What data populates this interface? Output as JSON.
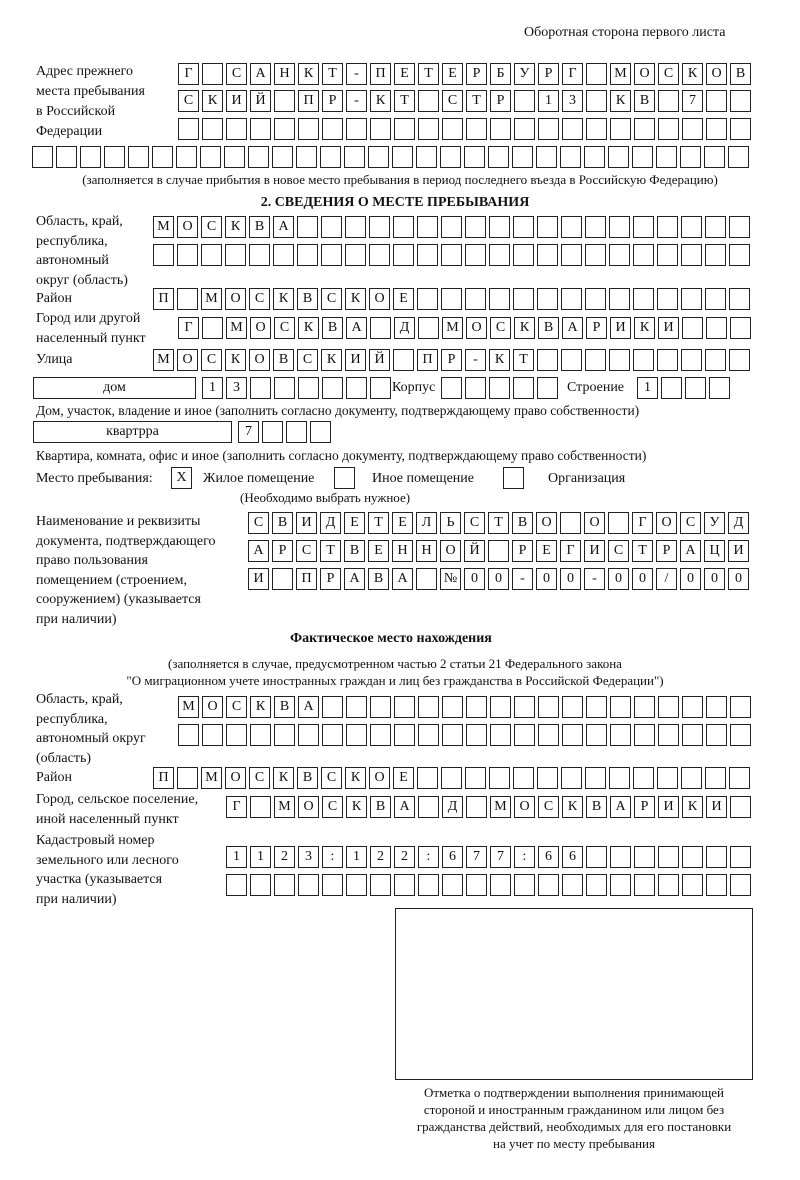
{
  "header": "Оборотная сторона первого листа",
  "prev_address": {
    "label": "Адрес прежнего\nместа пребывания\nв Российской\nФедерации",
    "rows": [
      "Г САНКТ-ПЕТЕРБУРГ МОСКОВ",
      "СКИЙ ПР-КТ СТР 13 КВ 7  ",
      "                        ",
      "                              "
    ],
    "note": "(заполняется в случае прибытия в новое место пребывания в период последнего въезда в Российскую Федерацию)"
  },
  "section2": {
    "title": "2. СВЕДЕНИЯ О МЕСТЕ ПРЕБЫВАНИЯ",
    "region_label": "Область, край,\nреспублика,\nавтономный\nокруг (область)",
    "region_rows": [
      "МОСКВА                   ",
      "                         "
    ],
    "district_label": "Район",
    "district_row": "П МОСКВСКОЕ              ",
    "city_label": "Город или другой\nнаселенный пункт",
    "city_row": "Г МОСКВА Д МОСКВАРИКИ   ",
    "street_label": "Улица",
    "street_row": "МОСКОВСКИЙ ПР-КТ         ",
    "house_type": "дом",
    "house_row": "13      ",
    "korpus_label": "Корпус",
    "korpus_row": "     ",
    "building_label": "Строение",
    "building_row": "1   ",
    "house_caption": "Дом, участок, владение и иное (заполнить согласно документу, подтверждающему право собственности)",
    "flat_type": "квартрра",
    "flat_row": "7   ",
    "flat_caption": "Квартира, комната, офис и иное (заполнить согласно документу, подтверждающему право собственности)",
    "stay_label": "Место пребывания:",
    "stay_options": [
      {
        "label": "Жилое помещение",
        "mark": "X"
      },
      {
        "label": "Иное помещение",
        "mark": ""
      },
      {
        "label": "Организация",
        "mark": ""
      }
    ],
    "stay_note": "(Необходимо выбрать нужное)",
    "doc_label": "Наименование и реквизиты\nдокумента, подтверждающего\nправо пользования\nпомещением (строением,\nсооружением) (указывается\nпри наличии)",
    "doc_rows": [
      "СВИДЕТЕЛЬСТВО О ГОСУД",
      "АРСТВЕННОЙ РЕГИСТРАЦИ",
      "И ПРАВА №00-00-00/000"
    ]
  },
  "actual": {
    "title": "Фактическое место нахождения",
    "note1": "(заполняется в случае, предусмотренном частью 2 статьи 21 Федерального закона",
    "note2": "\"О миграционном учете иностранных граждан и лиц без гражданства в Российской Федерации\")",
    "region_label": "Область, край,\nреспублика,\nавтономный округ\n(область)",
    "region_rows": [
      "МОСКВА                  ",
      "                        "
    ],
    "district_label": "Район",
    "district_row": "П МОСКВСКОЕ              ",
    "city_label": "Город, сельское поселение,\nиной населенный пункт",
    "city_row": "Г МОСКВА Д МОСКВАРИКИ ",
    "cadastral_label": "Кадастровый номер\nземельного или лесного\nучастка (указывается\nпри наличии)",
    "cadastral_rows": [
      "1123:122:677:66       ",
      "                      "
    ]
  },
  "stamp_caption": "Отметка о подтверждении выполнения принимающей\nстороной и иностранным гражданином или лицом без\nгражданства действий, необходимых для его постановки\nна учет по месту пребывания"
}
